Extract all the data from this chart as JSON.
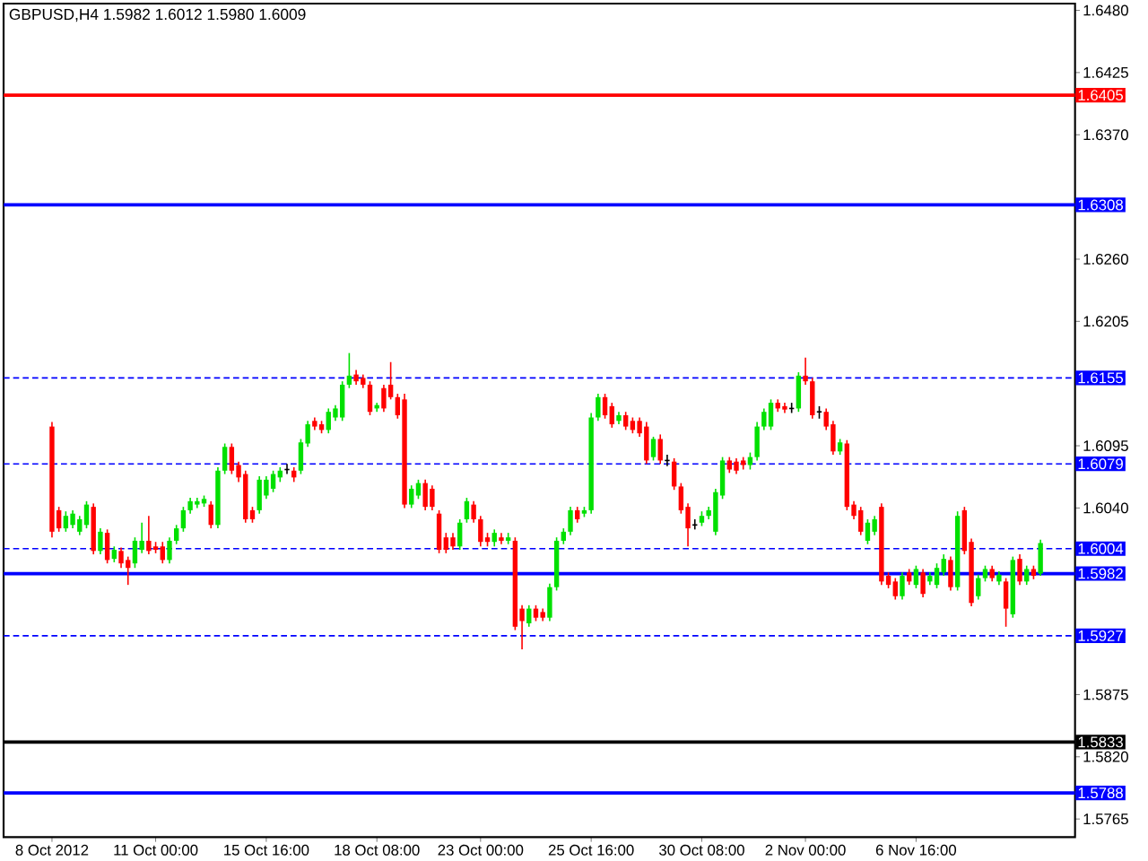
{
  "chart_data": {
    "type": "candlestick",
    "title": "GBPUSD,H4 1.5982 1.6012 1.5980 1.6009",
    "categories": [
      "8 Oct 2012",
      null,
      null,
      null,
      null,
      null,
      null,
      null,
      null,
      null,
      null,
      null,
      null,
      null,
      null,
      "11 Oct 00:00",
      null,
      null,
      null,
      null,
      null,
      null,
      null,
      null,
      null,
      null,
      null,
      null,
      null,
      null,
      null,
      "15 Oct 16:00",
      null,
      null,
      null,
      null,
      null,
      null,
      null,
      null,
      null,
      null,
      null,
      null,
      null,
      null,
      null,
      "18 Oct 08:00",
      null,
      null,
      null,
      null,
      null,
      null,
      null,
      null,
      null,
      null,
      null,
      null,
      null,
      null,
      "23 Oct 00:00",
      null,
      null,
      null,
      null,
      null,
      null,
      null,
      null,
      null,
      null,
      null,
      null,
      null,
      null,
      null,
      "25 Oct 16:00",
      null,
      null,
      null,
      null,
      null,
      null,
      null,
      null,
      null,
      null,
      null,
      null,
      null,
      null,
      null,
      "30 Oct 08:00",
      null,
      null,
      null,
      null,
      null,
      null,
      null,
      null,
      null,
      null,
      null,
      null,
      null,
      null,
      "2 Nov 00:00",
      null,
      null,
      null,
      null,
      null,
      null,
      null,
      null,
      null,
      null,
      null,
      null,
      null,
      null,
      null,
      "6 Nov 16:00",
      null,
      null,
      null,
      null,
      null,
      null,
      null,
      null,
      null,
      null,
      null,
      null,
      null,
      null,
      null,
      null,
      null,
      null
    ],
    "ohlc": [
      [
        1.6112,
        1.6116,
        1.6014,
        1.6019
      ],
      [
        1.6038,
        1.6041,
        1.6019,
        1.6022
      ],
      [
        1.6022,
        1.6037,
        1.6019,
        1.6033
      ],
      [
        1.6025,
        1.6038,
        1.6022,
        1.6035
      ],
      [
        1.6019,
        1.6033,
        1.6016,
        1.603
      ],
      [
        1.6025,
        1.6046,
        1.6022,
        1.6043
      ],
      [
        1.6041,
        1.6044,
        1.5999,
        1.6002
      ],
      [
        1.6002,
        1.6022,
        1.5999,
        1.6019
      ],
      [
        1.6018,
        1.6021,
        1.5991,
        1.5994
      ],
      [
        1.5995,
        1.6006,
        1.5992,
        1.6003
      ],
      [
        1.6002,
        1.6005,
        1.5987,
        1.5991
      ],
      [
        1.5994,
        1.5997,
        1.5972,
        1.5987
      ],
      [
        1.5991,
        1.6014,
        1.5987,
        1.6011
      ],
      [
        1.6003,
        1.6027,
        1.6,
        1.6011
      ],
      [
        1.6011,
        1.6033,
        1.5999,
        1.6002
      ],
      [
        1.6006,
        1.601,
        1.6,
        1.6003
      ],
      [
        1.6006,
        1.601,
        1.5991,
        1.5994
      ],
      [
        1.5994,
        1.6014,
        1.5991,
        1.6011
      ],
      [
        1.6011,
        1.6025,
        1.6008,
        1.6022
      ],
      [
        1.6022,
        1.6041,
        1.6019,
        1.6038
      ],
      [
        1.6038,
        1.6049,
        1.6035,
        1.6046
      ],
      [
        1.6043,
        1.6049,
        1.604,
        1.6046
      ],
      [
        1.6044,
        1.6051,
        1.6041,
        1.6048
      ],
      [
        1.6043,
        1.6046,
        1.6022,
        1.6025
      ],
      [
        1.6025,
        1.6076,
        1.6022,
        1.6073
      ],
      [
        1.6073,
        1.6097,
        1.607,
        1.6094
      ],
      [
        1.6094,
        1.6097,
        1.607,
        1.6073
      ],
      [
        1.6078,
        1.6081,
        1.6063,
        1.6067
      ],
      [
        1.607,
        1.6073,
        1.6027,
        1.603
      ],
      [
        1.6038,
        1.6041,
        1.6027,
        1.603
      ],
      [
        1.6038,
        1.6068,
        1.6035,
        1.6065
      ],
      [
        1.6051,
        1.6068,
        1.6048,
        1.6065
      ],
      [
        1.6057,
        1.6073,
        1.6054,
        1.607
      ],
      [
        1.6067,
        1.6076,
        1.6063,
        1.6073
      ],
      [
        1.6074,
        1.6079,
        1.607,
        1.6074
      ],
      [
        1.6073,
        1.6076,
        1.6063,
        1.6067
      ],
      [
        1.6073,
        1.6101,
        1.607,
        1.6098
      ],
      [
        1.6097,
        1.6117,
        1.6094,
        1.6114
      ],
      [
        1.6117,
        1.612,
        1.6109,
        1.6112
      ],
      [
        1.6114,
        1.6117,
        1.6106,
        1.6109
      ],
      [
        1.6109,
        1.6128,
        1.6106,
        1.6125
      ],
      [
        1.612,
        1.6131,
        1.6117,
        1.6128
      ],
      [
        1.612,
        1.6152,
        1.6117,
        1.6149
      ],
      [
        1.6149,
        1.6177,
        1.6146,
        1.6157
      ],
      [
        1.6158,
        1.6162,
        1.6149,
        1.6152
      ],
      [
        1.6155,
        1.6158,
        1.6146,
        1.6149
      ],
      [
        1.6149,
        1.6152,
        1.6122,
        1.6125
      ],
      [
        1.6128,
        1.6133,
        1.6125,
        1.6131
      ],
      [
        1.6146,
        1.6149,
        1.6125,
        1.6128
      ],
      [
        1.6149,
        1.6169,
        1.6136,
        1.6138
      ],
      [
        1.6138,
        1.6141,
        1.6119,
        1.6122
      ],
      [
        1.6136,
        1.6141,
        1.604,
        1.6043
      ],
      [
        1.6043,
        1.606,
        1.604,
        1.6057
      ],
      [
        1.6051,
        1.6065,
        1.6048,
        1.6062
      ],
      [
        1.6062,
        1.6065,
        1.6038,
        1.6041
      ],
      [
        1.6057,
        1.606,
        1.6038,
        1.6041
      ],
      [
        1.6035,
        1.6038,
        1.6,
        1.6003
      ],
      [
        1.6014,
        1.6018,
        1.6,
        1.6003
      ],
      [
        1.6014,
        1.6018,
        1.6003,
        1.6006
      ],
      [
        1.6006,
        1.603,
        1.6003,
        1.6027
      ],
      [
        1.603,
        1.6049,
        1.6027,
        1.6046
      ],
      [
        1.6043,
        1.6046,
        1.6027,
        1.603
      ],
      [
        1.603,
        1.6033,
        1.6006,
        1.601
      ],
      [
        1.6014,
        1.6018,
        1.6006,
        1.601
      ],
      [
        1.601,
        1.6021,
        1.6006,
        1.6018
      ],
      [
        1.6014,
        1.6018,
        1.6008,
        1.6011
      ],
      [
        1.6011,
        1.6018,
        1.6008,
        1.6014
      ],
      [
        1.6011,
        1.6014,
        1.5932,
        1.5935
      ],
      [
        1.5951,
        1.5954,
        1.5915,
        1.594
      ],
      [
        1.5938,
        1.5954,
        1.5935,
        1.5951
      ],
      [
        1.5951,
        1.5954,
        1.594,
        1.5943
      ],
      [
        1.5948,
        1.5951,
        1.594,
        1.5943
      ],
      [
        1.5943,
        1.5973,
        1.594,
        1.597
      ],
      [
        1.597,
        1.6014,
        1.5967,
        1.6011
      ],
      [
        1.6011,
        1.6022,
        1.6008,
        1.6019
      ],
      [
        1.6019,
        1.6041,
        1.6016,
        1.6038
      ],
      [
        1.6038,
        1.6041,
        1.6027,
        1.603
      ],
      [
        1.6035,
        1.6041,
        1.6032,
        1.6038
      ],
      [
        1.6038,
        1.6124,
        1.6035,
        1.612
      ],
      [
        1.612,
        1.6141,
        1.6117,
        1.6138
      ],
      [
        1.6138,
        1.6141,
        1.6119,
        1.6122
      ],
      [
        1.613,
        1.6133,
        1.6111,
        1.6114
      ],
      [
        1.6117,
        1.6125,
        1.6114,
        1.6122
      ],
      [
        1.6122,
        1.6125,
        1.6109,
        1.6112
      ],
      [
        1.6117,
        1.612,
        1.6106,
        1.6109
      ],
      [
        1.6117,
        1.612,
        1.6103,
        1.6106
      ],
      [
        1.6112,
        1.6116,
        1.6079,
        1.6082
      ],
      [
        1.6085,
        1.6103,
        1.6082,
        1.6101
      ],
      [
        1.6101,
        1.6105,
        1.6079,
        1.6082
      ],
      [
        1.6082,
        1.6087,
        1.6077,
        1.6082
      ],
      [
        1.6081,
        1.6084,
        1.6056,
        1.6059
      ],
      [
        1.6059,
        1.6062,
        1.6035,
        1.6038
      ],
      [
        1.6041,
        1.6044,
        1.6006,
        1.6022
      ],
      [
        1.6025,
        1.603,
        1.6021,
        1.6025
      ],
      [
        1.6027,
        1.6037,
        1.6024,
        1.6033
      ],
      [
        1.6033,
        1.6041,
        1.603,
        1.6038
      ],
      [
        1.6019,
        1.6057,
        1.6016,
        1.6054
      ],
      [
        1.6051,
        1.6085,
        1.6048,
        1.6082
      ],
      [
        1.6082,
        1.6085,
        1.6071,
        1.6074
      ],
      [
        1.6081,
        1.6084,
        1.607,
        1.6073
      ],
      [
        1.6082,
        1.6085,
        1.6074,
        1.6078
      ],
      [
        1.6078,
        1.6089,
        1.6074,
        1.6085
      ],
      [
        1.6085,
        1.6116,
        1.6082,
        1.6112
      ],
      [
        1.6112,
        1.6128,
        1.6109,
        1.6125
      ],
      [
        1.6112,
        1.6136,
        1.6109,
        1.6133
      ],
      [
        1.6133,
        1.6136,
        1.6125,
        1.6128
      ],
      [
        1.613,
        1.6133,
        1.6124,
        1.6127
      ],
      [
        1.6128,
        1.6133,
        1.6124,
        1.6128
      ],
      [
        1.6128,
        1.616,
        1.6125,
        1.6157
      ],
      [
        1.6157,
        1.6173,
        1.6149,
        1.6152
      ],
      [
        1.6152,
        1.6155,
        1.6119,
        1.6122
      ],
      [
        1.6125,
        1.613,
        1.6119,
        1.6125
      ],
      [
        1.6125,
        1.6128,
        1.6109,
        1.6112
      ],
      [
        1.6114,
        1.6117,
        1.6087,
        1.609
      ],
      [
        1.609,
        1.6101,
        1.6087,
        1.6098
      ],
      [
        1.6097,
        1.61,
        1.6038,
        1.6041
      ],
      [
        1.6043,
        1.6046,
        1.603,
        1.6033
      ],
      [
        1.6038,
        1.6041,
        1.6016,
        1.6019
      ],
      [
        1.6011,
        1.603,
        1.6008,
        1.6027
      ],
      [
        1.6019,
        1.6033,
        1.6016,
        1.603
      ],
      [
        1.6041,
        1.6044,
        1.5972,
        1.5975
      ],
      [
        1.598,
        1.5983,
        1.5969,
        1.5972
      ],
      [
        1.5975,
        1.5978,
        1.5959,
        1.5962
      ],
      [
        1.5962,
        1.5983,
        1.5959,
        1.598
      ],
      [
        1.5983,
        1.5986,
        1.5972,
        1.5975
      ],
      [
        1.5972,
        1.5989,
        1.5969,
        1.5986
      ],
      [
        1.5983,
        1.5986,
        1.5961,
        1.5964
      ],
      [
        1.5975,
        1.5983,
        1.5972,
        1.598
      ],
      [
        1.5972,
        1.5991,
        1.5969,
        1.5987
      ],
      [
        1.5983,
        1.5999,
        1.598,
        1.5995
      ],
      [
        1.5994,
        1.5997,
        1.5967,
        1.597
      ],
      [
        1.597,
        1.6037,
        1.5967,
        1.6033
      ],
      [
        1.6038,
        1.6041,
        1.5999,
        1.6002
      ],
      [
        1.601,
        1.6013,
        1.5953,
        1.5956
      ],
      [
        1.5962,
        1.5981,
        1.5959,
        1.5978
      ],
      [
        1.5978,
        1.5989,
        1.5975,
        1.5986
      ],
      [
        1.5986,
        1.5989,
        1.5975,
        1.5978
      ],
      [
        1.5975,
        1.5984,
        1.5972,
        1.5981
      ],
      [
        1.5975,
        1.5978,
        1.5935,
        1.5951
      ],
      [
        1.5946,
        1.5997,
        1.5943,
        1.5994
      ],
      [
        1.5995,
        1.5999,
        1.5972,
        1.5975
      ],
      [
        1.5975,
        1.5989,
        1.5972,
        1.5986
      ],
      [
        1.5986,
        1.5989,
        1.5977,
        1.598
      ],
      [
        1.5982,
        1.6012,
        1.598,
        1.6009
      ]
    ],
    "ylim": [
      1.5749,
      1.6486
    ],
    "yticks": [
      {
        "value": 1.648,
        "label": "1.6480"
      },
      1.6425,
      {
        "value": 1.637,
        "label": "1.6370"
      },
      {
        "value": 1.626,
        "label": "1.6260"
      },
      1.6205,
      1.6095,
      {
        "value": 1.604,
        "label": "1.6040"
      },
      1.5875,
      {
        "value": 1.582,
        "label": "1.5820"
      },
      1.5765
    ],
    "ref_lines": [
      {
        "axis": "y",
        "value": 1.6405,
        "label": "1.6405",
        "color": "#ff0000",
        "line_style": "solid"
      },
      {
        "axis": "y",
        "value": 1.6308,
        "label": "1.6308",
        "color": "#0000ff",
        "line_style": "solid"
      },
      {
        "axis": "y",
        "value": 1.6155,
        "label": "1.6155",
        "color": "#0000ff",
        "line_style": "dashed"
      },
      {
        "axis": "y",
        "value": 1.6079,
        "label": "1.6079",
        "color": "#0000ff",
        "line_style": "dashed"
      },
      {
        "axis": "y",
        "value": 1.6004,
        "label": "1.6004",
        "color": "#0000ff",
        "line_style": "dashed"
      },
      {
        "axis": "y",
        "value": 1.5982,
        "label": "1.5982",
        "color": "#0000ff",
        "line_style": "solid"
      },
      {
        "axis": "y",
        "value": 1.5927,
        "label": "1.5927",
        "color": "#0000ff",
        "line_style": "dashed"
      },
      {
        "axis": "y",
        "value": 1.5833,
        "label": "1.5833",
        "color": "#000000",
        "line_style": "solid"
      },
      {
        "axis": "y",
        "value": 1.5788,
        "label": "1.5788",
        "color": "#0000ff",
        "line_style": "solid"
      }
    ]
  }
}
